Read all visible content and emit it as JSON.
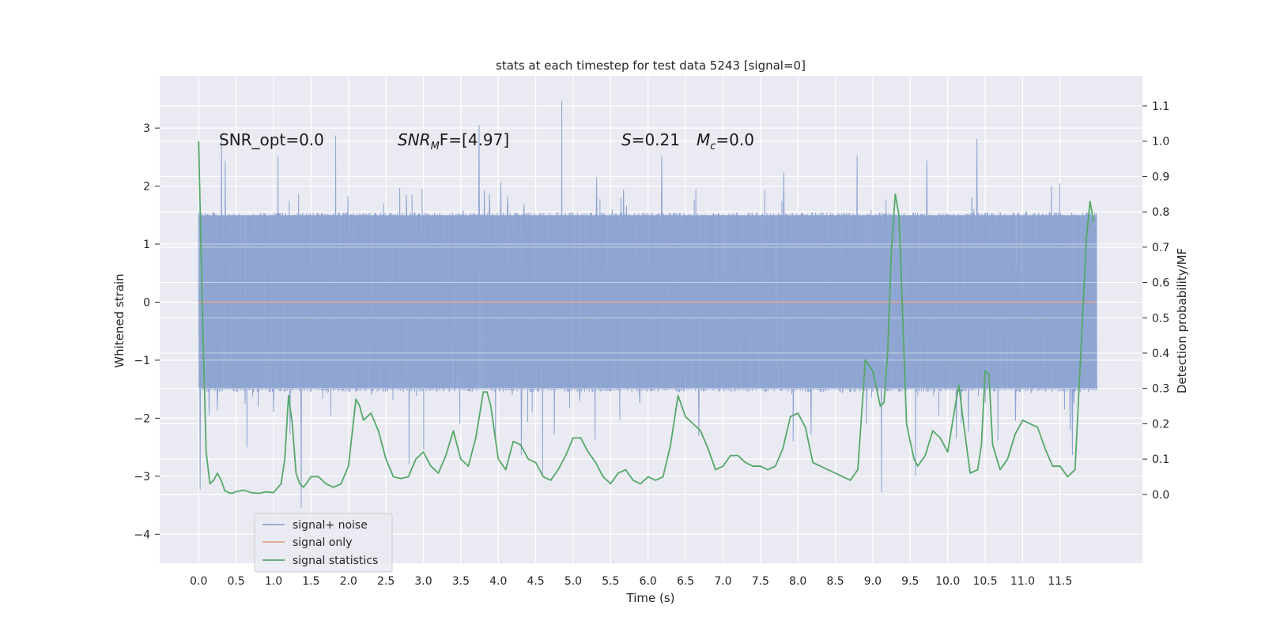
{
  "chart_data": {
    "type": "line",
    "title": "stats at each timestep for test data 5243 [signal=0]",
    "xlabel": "Time (s)",
    "ylabel_left": "Whitened strain",
    "ylabel_right": "Detection probability/MF",
    "xlim": [
      -0.52,
      12.6
    ],
    "ylim_left": [
      -4.5,
      3.9
    ],
    "ylim_right": [
      -0.195,
      1.185
    ],
    "x_ticks": [
      0.0,
      0.5,
      1.0,
      1.5,
      2.0,
      2.5,
      3.0,
      3.5,
      4.0,
      4.5,
      5.0,
      5.5,
      6.0,
      6.5,
      7.0,
      7.5,
      8.0,
      8.5,
      9.0,
      9.5,
      10.0,
      10.5,
      11.0,
      11.5
    ],
    "x_tick_labels": [
      "0.0",
      "0.5",
      "1.0",
      "1.5",
      "2.0",
      "2.5",
      "3.0",
      "3.5",
      "4.0",
      "4.5",
      "5.0",
      "5.5",
      "6.0",
      "6.5",
      "7.0",
      "7.5",
      "8.0",
      "8.5",
      "9.0",
      "9.5",
      "10.0",
      "10.5",
      "11.0",
      "11.5"
    ],
    "y_left_ticks": [
      -4,
      -3,
      -2,
      -1,
      0,
      1,
      2,
      3
    ],
    "y_left_tick_labels": [
      "−4",
      "−3",
      "−2",
      "−1",
      "0",
      "1",
      "2",
      "3"
    ],
    "y_right_ticks": [
      0.0,
      0.1,
      0.2,
      0.3,
      0.4,
      0.5,
      0.6,
      0.7,
      0.8,
      0.9,
      1.0,
      1.1
    ],
    "y_right_tick_labels": [
      "0.0",
      "0.1",
      "0.2",
      "0.3",
      "0.4",
      "0.5",
      "0.6",
      "0.7",
      "0.8",
      "0.9",
      "1.0",
      "1.1"
    ],
    "grid": true,
    "legend_position": "lower-left",
    "annotations": {
      "snr_opt": "SNR_opt=0.0",
      "snr_mf_main": "SNR",
      "snr_mf_sub": "M",
      "snr_mf_rest": "F=[4.97]",
      "s_main": "S",
      "s_rest": "=0.21",
      "mc_main": "M",
      "mc_sub": "c",
      "mc_rest": "=0.0"
    },
    "series": [
      {
        "name": "signal+ noise",
        "axis": "left",
        "color": "#8fa5d1",
        "t_range": [
          0.0,
          11.99
        ],
        "envelope_bulk": [
          -1.5,
          1.5
        ],
        "peak_range": [
          -4.1,
          3.5
        ]
      },
      {
        "name": "signal only",
        "axis": "left",
        "color": "#e5a58a",
        "x": [
          0.0,
          11.99
        ],
        "y": [
          0.0,
          0.0
        ]
      },
      {
        "name": "signal statistics",
        "axis": "right",
        "color": "#55a868",
        "x": [
          0.0,
          0.05,
          0.1,
          0.15,
          0.2,
          0.25,
          0.3,
          0.35,
          0.4,
          0.45,
          0.5,
          0.6,
          0.7,
          0.8,
          0.9,
          1.0,
          1.1,
          1.15,
          1.2,
          1.25,
          1.3,
          1.35,
          1.4,
          1.5,
          1.6,
          1.7,
          1.8,
          1.9,
          2.0,
          2.1,
          2.15,
          2.2,
          2.3,
          2.4,
          2.5,
          2.6,
          2.7,
          2.8,
          2.9,
          3.0,
          3.1,
          3.2,
          3.3,
          3.4,
          3.5,
          3.6,
          3.7,
          3.8,
          3.85,
          3.9,
          4.0,
          4.1,
          4.2,
          4.3,
          4.4,
          4.5,
          4.6,
          4.7,
          4.8,
          4.9,
          5.0,
          5.1,
          5.2,
          5.3,
          5.4,
          5.5,
          5.6,
          5.7,
          5.8,
          5.9,
          6.0,
          6.1,
          6.2,
          6.3,
          6.4,
          6.5,
          6.6,
          6.7,
          6.8,
          6.9,
          7.0,
          7.1,
          7.2,
          7.3,
          7.4,
          7.5,
          7.6,
          7.7,
          7.8,
          7.9,
          8.0,
          8.1,
          8.2,
          8.3,
          8.4,
          8.5,
          8.6,
          8.7,
          8.8,
          8.9,
          9.0,
          9.05,
          9.1,
          9.15,
          9.2,
          9.25,
          9.3,
          9.35,
          9.4,
          9.45,
          9.5,
          9.55,
          9.6,
          9.7,
          9.8,
          9.9,
          10.0,
          10.1,
          10.15,
          10.2,
          10.3,
          10.4,
          10.45,
          10.5,
          10.55,
          10.6,
          10.7,
          10.8,
          10.9,
          11.0,
          11.1,
          11.2,
          11.3,
          11.4,
          11.5,
          11.6,
          11.7,
          11.8,
          11.85,
          11.9,
          11.95
        ],
        "y": [
          1.0,
          0.52,
          0.12,
          0.03,
          0.04,
          0.06,
          0.04,
          0.01,
          0.005,
          0.003,
          0.008,
          0.012,
          0.005,
          0.003,
          0.007,
          0.005,
          0.03,
          0.1,
          0.28,
          0.2,
          0.06,
          0.03,
          0.02,
          0.05,
          0.05,
          0.03,
          0.02,
          0.03,
          0.08,
          0.27,
          0.25,
          0.21,
          0.23,
          0.18,
          0.1,
          0.05,
          0.045,
          0.05,
          0.1,
          0.12,
          0.08,
          0.06,
          0.11,
          0.18,
          0.1,
          0.08,
          0.16,
          0.29,
          0.29,
          0.25,
          0.1,
          0.07,
          0.15,
          0.14,
          0.1,
          0.09,
          0.05,
          0.04,
          0.07,
          0.11,
          0.16,
          0.16,
          0.12,
          0.09,
          0.05,
          0.03,
          0.06,
          0.07,
          0.04,
          0.03,
          0.05,
          0.04,
          0.05,
          0.14,
          0.28,
          0.22,
          0.2,
          0.18,
          0.13,
          0.07,
          0.08,
          0.11,
          0.11,
          0.09,
          0.08,
          0.08,
          0.07,
          0.08,
          0.13,
          0.22,
          0.23,
          0.19,
          0.09,
          0.08,
          0.07,
          0.06,
          0.05,
          0.04,
          0.07,
          0.38,
          0.35,
          0.3,
          0.25,
          0.26,
          0.41,
          0.7,
          0.85,
          0.79,
          0.5,
          0.2,
          0.15,
          0.1,
          0.08,
          0.11,
          0.18,
          0.16,
          0.12,
          0.25,
          0.31,
          0.22,
          0.06,
          0.07,
          0.14,
          0.35,
          0.34,
          0.14,
          0.07,
          0.1,
          0.17,
          0.21,
          0.2,
          0.19,
          0.13,
          0.08,
          0.08,
          0.05,
          0.07,
          0.5,
          0.72,
          0.83,
          0.77
        ]
      }
    ]
  }
}
